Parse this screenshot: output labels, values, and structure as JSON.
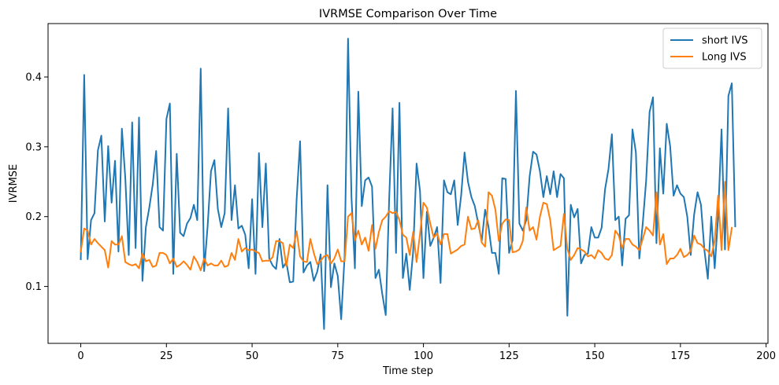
{
  "chart_data": {
    "type": "line",
    "title": "IVRMSE Comparison Over Time",
    "xlabel": "Time step",
    "ylabel": "IVRMSE",
    "xlim": [
      -9.55,
      200.55
    ],
    "ylim": [
      0.0185,
      0.4765
    ],
    "xticks": [
      0,
      25,
      50,
      75,
      100,
      125,
      150,
      175,
      200
    ],
    "yticks": [
      0.1,
      0.2,
      0.3,
      0.4
    ],
    "ytick_labels": [
      "0.1",
      "0.2",
      "0.3",
      "0.4"
    ],
    "grid": false,
    "legend": "top-right",
    "series": [
      {
        "name": "short IVS",
        "color": "#1f77b4",
        "values": [
          0.139,
          0.403,
          0.139,
          0.195,
          0.205,
          0.295,
          0.316,
          0.193,
          0.301,
          0.22,
          0.28,
          0.15,
          0.326,
          0.255,
          0.145,
          0.335,
          0.155,
          0.342,
          0.108,
          0.185,
          0.213,
          0.246,
          0.294,
          0.185,
          0.18,
          0.34,
          0.362,
          0.118,
          0.29,
          0.177,
          0.172,
          0.19,
          0.198,
          0.217,
          0.195,
          0.412,
          0.122,
          0.185,
          0.265,
          0.281,
          0.211,
          0.185,
          0.205,
          0.355,
          0.195,
          0.245,
          0.183,
          0.187,
          0.174,
          0.126,
          0.225,
          0.118,
          0.291,
          0.185,
          0.276,
          0.14,
          0.13,
          0.125,
          0.168,
          0.127,
          0.135,
          0.106,
          0.107,
          0.225,
          0.308,
          0.12,
          0.13,
          0.135,
          0.108,
          0.121,
          0.146,
          0.039,
          0.245,
          0.099,
          0.133,
          0.115,
          0.053,
          0.144,
          0.455,
          0.228,
          0.126,
          0.379,
          0.215,
          0.252,
          0.256,
          0.243,
          0.112,
          0.124,
          0.089,
          0.059,
          0.225,
          0.355,
          0.148,
          0.363,
          0.112,
          0.147,
          0.095,
          0.15,
          0.276,
          0.237,
          0.112,
          0.207,
          0.158,
          0.17,
          0.185,
          0.105,
          0.252,
          0.235,
          0.232,
          0.252,
          0.188,
          0.23,
          0.292,
          0.25,
          0.228,
          0.215,
          0.19,
          0.165,
          0.21,
          0.185,
          0.148,
          0.148,
          0.118,
          0.255,
          0.254,
          0.148,
          0.166,
          0.38,
          0.19,
          0.18,
          0.195,
          0.258,
          0.293,
          0.289,
          0.265,
          0.228,
          0.258,
          0.232,
          0.265,
          0.228,
          0.261,
          0.255,
          0.058,
          0.217,
          0.199,
          0.211,
          0.133,
          0.145,
          0.147,
          0.185,
          0.17,
          0.17,
          0.184,
          0.239,
          0.268,
          0.318,
          0.195,
          0.2,
          0.13,
          0.197,
          0.202,
          0.325,
          0.292,
          0.14,
          0.19,
          0.252,
          0.35,
          0.371,
          0.162,
          0.298,
          0.233,
          0.333,
          0.301,
          0.23,
          0.245,
          0.233,
          0.228,
          0.2,
          0.145,
          0.203,
          0.235,
          0.217,
          0.152,
          0.111,
          0.2,
          0.126,
          0.2,
          0.325,
          0.153,
          0.373,
          0.391,
          0.186
        ]
      },
      {
        "name": "Long IVS",
        "color": "#ff7f0e",
        "values": [
          0.15,
          0.183,
          0.18,
          0.16,
          0.168,
          0.162,
          0.157,
          0.152,
          0.127,
          0.165,
          0.16,
          0.16,
          0.172,
          0.135,
          0.132,
          0.13,
          0.132,
          0.126,
          0.147,
          0.136,
          0.138,
          0.128,
          0.13,
          0.148,
          0.148,
          0.145,
          0.133,
          0.14,
          0.128,
          0.131,
          0.136,
          0.131,
          0.124,
          0.143,
          0.135,
          0.123,
          0.14,
          0.13,
          0.133,
          0.13,
          0.13,
          0.137,
          0.128,
          0.13,
          0.148,
          0.138,
          0.168,
          0.15,
          0.155,
          0.152,
          0.153,
          0.15,
          0.148,
          0.136,
          0.137,
          0.137,
          0.142,
          0.165,
          0.165,
          0.162,
          0.129,
          0.16,
          0.155,
          0.179,
          0.143,
          0.136,
          0.135,
          0.168,
          0.148,
          0.132,
          0.137,
          0.143,
          0.145,
          0.133,
          0.14,
          0.153,
          0.136,
          0.136,
          0.2,
          0.205,
          0.166,
          0.18,
          0.16,
          0.17,
          0.151,
          0.188,
          0.154,
          0.178,
          0.195,
          0.2,
          0.208,
          0.205,
          0.207,
          0.195,
          0.174,
          0.17,
          0.145,
          0.178,
          0.135,
          0.175,
          0.22,
          0.213,
          0.19,
          0.17,
          0.176,
          0.16,
          0.175,
          0.175,
          0.147,
          0.15,
          0.153,
          0.158,
          0.16,
          0.2,
          0.182,
          0.183,
          0.195,
          0.163,
          0.157,
          0.235,
          0.23,
          0.21,
          0.165,
          0.19,
          0.196,
          0.195,
          0.149,
          0.15,
          0.153,
          0.165,
          0.213,
          0.18,
          0.185,
          0.167,
          0.2,
          0.22,
          0.218,
          0.195,
          0.152,
          0.155,
          0.158,
          0.204,
          0.154,
          0.138,
          0.145,
          0.155,
          0.153,
          0.15,
          0.143,
          0.145,
          0.14,
          0.152,
          0.148,
          0.14,
          0.138,
          0.145,
          0.18,
          0.173,
          0.155,
          0.168,
          0.168,
          0.16,
          0.157,
          0.152,
          0.168,
          0.185,
          0.18,
          0.173,
          0.235,
          0.16,
          0.175,
          0.132,
          0.14,
          0.14,
          0.145,
          0.154,
          0.142,
          0.145,
          0.151,
          0.173,
          0.162,
          0.16,
          0.154,
          0.151,
          0.143,
          0.165,
          0.23,
          0.152,
          0.25,
          0.152,
          0.184
        ]
      }
    ]
  }
}
